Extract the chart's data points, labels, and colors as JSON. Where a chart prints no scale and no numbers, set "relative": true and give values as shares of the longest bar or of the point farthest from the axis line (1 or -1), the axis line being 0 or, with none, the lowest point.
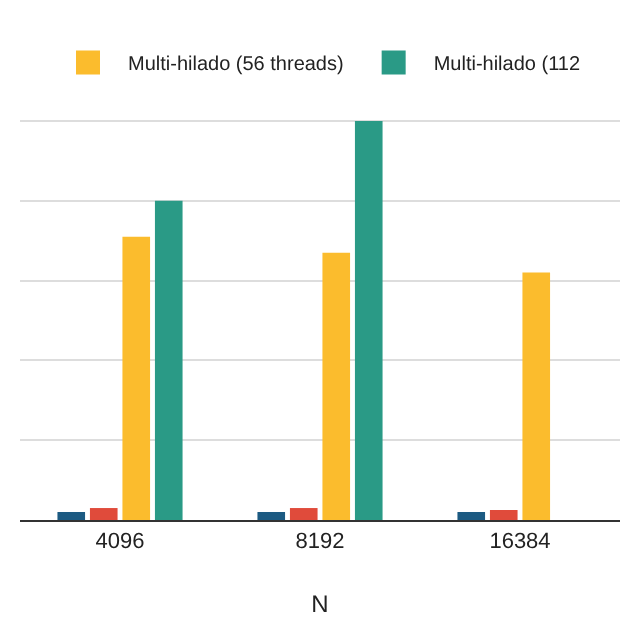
{
  "chart_data": {
    "type": "bar",
    "relative": true,
    "xlabel": "N",
    "categories": [
      "4096",
      "8192",
      "16384"
    ],
    "series": [
      {
        "color": "#1c5a82",
        "values": [
          0.02,
          0.02,
          0.02
        ]
      },
      {
        "color": "#e04b3b",
        "values": [
          0.03,
          0.03,
          0.025
        ]
      },
      {
        "name": "Multi-hilado (56 threads)",
        "color": "#fbbc2d",
        "values": [
          0.71,
          0.67,
          0.62
        ]
      },
      {
        "name": "Multi-hilado (112",
        "color": "#2a9a86",
        "values": [
          0.8,
          1,
          null
        ]
      }
    ],
    "grid": "y",
    "legend": "top"
  }
}
